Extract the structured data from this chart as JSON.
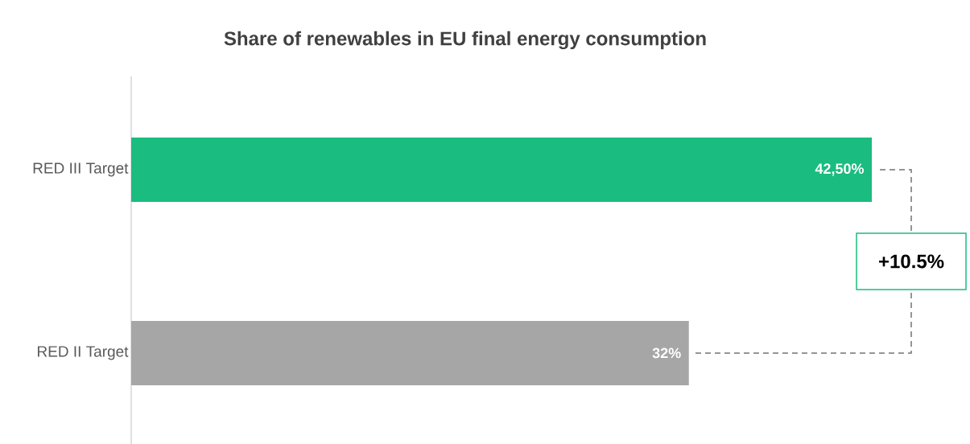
{
  "chart_data": {
    "type": "bar",
    "orientation": "horizontal",
    "title": "Share of renewables in EU final energy consumption",
    "categories": [
      "RED III Target",
      "RED II Target"
    ],
    "values": [
      42.5,
      32
    ],
    "colors": [
      "#1abc7f",
      "#a6a6a6"
    ],
    "value_labels": [
      "42,50%",
      "32%"
    ],
    "annotations": [
      "+10.5%"
    ]
  }
}
